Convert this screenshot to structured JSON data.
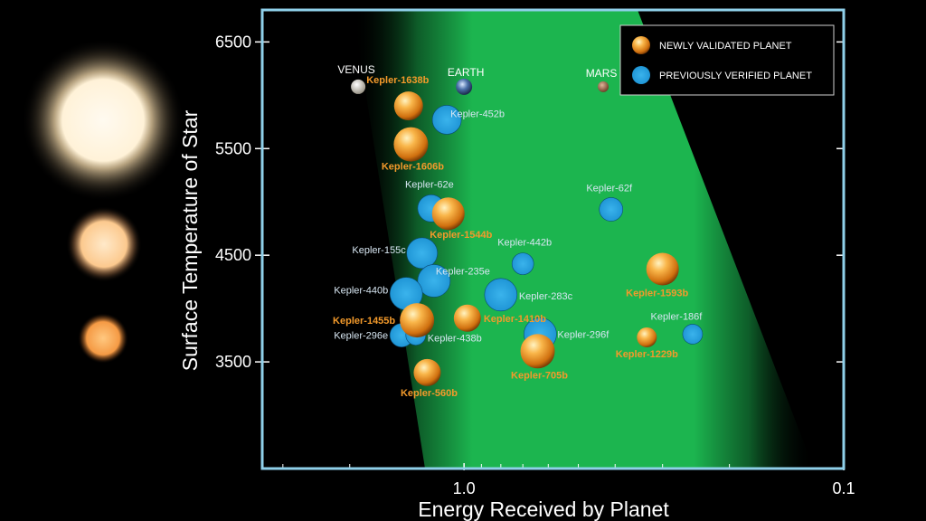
{
  "chart_data": {
    "type": "scatter",
    "title": "",
    "xlabel": "Energy Received by Planet",
    "ylabel": "Surface Temperature of Star",
    "x_scale": "log",
    "x_reversed": true,
    "xlim": [
      3.4,
      0.1
    ],
    "ylim": [
      2500,
      6800
    ],
    "x_ticks": [
      {
        "value": 1.0,
        "label": "1.0"
      },
      {
        "value": 0.1,
        "label": "0.1"
      }
    ],
    "y_ticks": [
      {
        "value": 3500,
        "label": "3500"
      },
      {
        "value": 4500,
        "label": "4500"
      },
      {
        "value": 5500,
        "label": "5500"
      },
      {
        "value": 6500,
        "label": "6500"
      }
    ],
    "legend": {
      "position": "top-right",
      "entries": [
        {
          "name": "NEWLY VALIDATED PLANET",
          "color": "#f39a2b"
        },
        {
          "name": "PREVIOUSLY VERIFIED PLANET",
          "color": "#2aa3e0"
        }
      ]
    },
    "habitable_zone_color": "#19a84a",
    "solar_system": [
      {
        "name": "VENUS",
        "x": 1.9,
        "y": 5800
      },
      {
        "name": "EARTH",
        "x": 1.0,
        "y": 5800
      },
      {
        "name": "MARS",
        "x": 0.43,
        "y": 5800
      }
    ],
    "series": [
      {
        "name": "NEWLY VALIDATED PLANET",
        "points": [
          {
            "name": "Kepler-1638b",
            "x": 1.4,
            "y": 5900
          },
          {
            "name": "Kepler-1606b",
            "x": 1.38,
            "y": 5540
          },
          {
            "name": "Kepler-1544b",
            "x": 1.1,
            "y": 4890
          },
          {
            "name": "Kepler-1593b",
            "x": 0.3,
            "y": 4370
          },
          {
            "name": "Kepler-1455b",
            "x": 1.33,
            "y": 3890
          },
          {
            "name": "Kepler-1410b",
            "x": 0.98,
            "y": 3910
          },
          {
            "name": "Kepler-1229b",
            "x": 0.33,
            "y": 3730
          },
          {
            "name": "Kepler-705b",
            "x": 0.64,
            "y": 3600
          },
          {
            "name": "Kepler-560b",
            "x": 1.25,
            "y": 3400
          }
        ]
      },
      {
        "name": "PREVIOUSLY VERIFIED PLANET",
        "points": [
          {
            "name": "Kepler-452b",
            "x": 1.11,
            "y": 5770
          },
          {
            "name": "Kepler-62e",
            "x": 1.22,
            "y": 4940
          },
          {
            "name": "Kepler-62f",
            "x": 0.41,
            "y": 4930
          },
          {
            "name": "Kepler-155c",
            "x": 1.29,
            "y": 4520
          },
          {
            "name": "Kepler-442b",
            "x": 0.7,
            "y": 4420
          },
          {
            "name": "Kepler-235e",
            "x": 1.2,
            "y": 4260
          },
          {
            "name": "Kepler-283c",
            "x": 0.8,
            "y": 4130
          },
          {
            "name": "Kepler-440b",
            "x": 1.42,
            "y": 4140
          },
          {
            "name": "Kepler-296e",
            "x": 1.46,
            "y": 3750
          },
          {
            "name": "Kepler-438b",
            "x": 1.34,
            "y": 3750
          },
          {
            "name": "Kepler-296f",
            "x": 0.63,
            "y": 3760
          },
          {
            "name": "Kepler-186f",
            "x": 0.25,
            "y": 3760
          }
        ]
      }
    ]
  }
}
